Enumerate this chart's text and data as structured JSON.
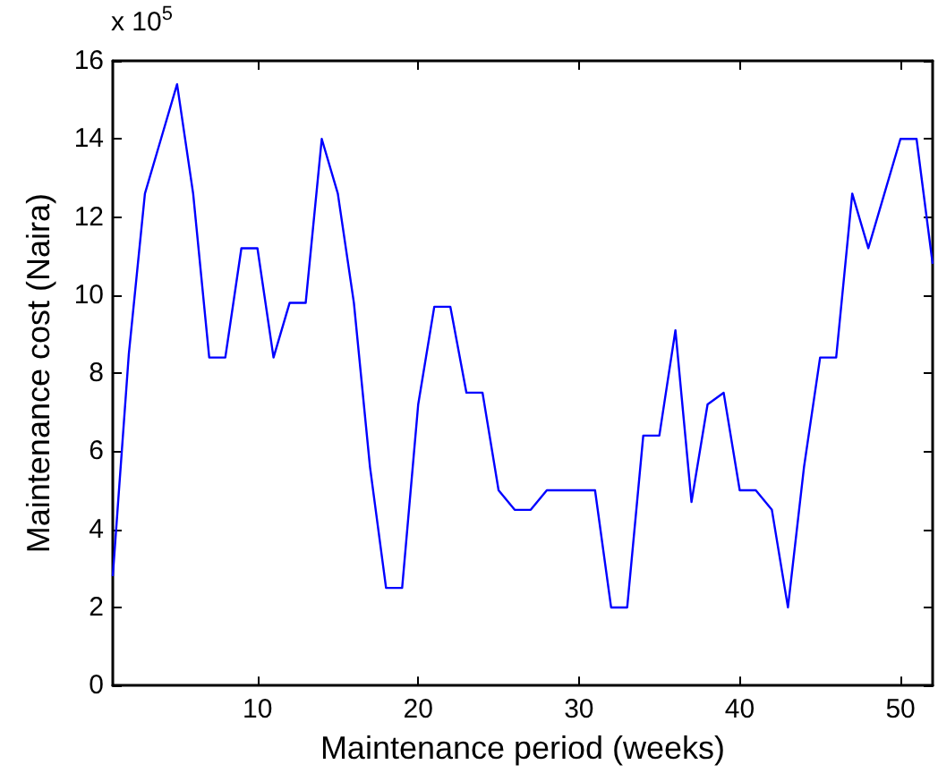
{
  "chart_data": {
    "type": "line",
    "xlabel": "Maintenance period (weeks)",
    "ylabel": "Maintenance cost (Naira)",
    "annotations": [
      "x 10$^{5}$"
    ],
    "x": [
      1,
      2,
      3,
      4,
      5,
      6,
      7,
      8,
      9,
      10,
      11,
      12,
      13,
      14,
      15,
      16,
      17,
      18,
      19,
      20,
      21,
      22,
      23,
      24,
      25,
      26,
      27,
      28,
      29,
      30,
      31,
      32,
      33,
      34,
      35,
      36,
      37,
      38,
      39,
      40,
      41,
      42,
      43,
      44,
      45,
      46,
      47,
      48,
      49,
      50,
      51,
      52
    ],
    "series": [
      {
        "color": "#0000ff",
        "values": [
          2.8,
          8.5,
          12.6,
          14.0,
          15.4,
          12.6,
          8.4,
          8.4,
          11.2,
          11.2,
          8.4,
          9.8,
          9.8,
          14.0,
          12.6,
          9.8,
          5.6,
          2.5,
          2.5,
          7.2,
          9.7,
          9.7,
          7.5,
          7.5,
          5.0,
          4.5,
          4.5,
          5.0,
          5.0,
          5.0,
          5.0,
          2.0,
          2.0,
          6.4,
          6.4,
          9.1,
          4.7,
          7.2,
          7.5,
          5.0,
          5.0,
          4.5,
          2.0,
          5.6,
          8.4,
          8.4,
          12.6,
          11.2,
          12.6,
          14.0,
          14.0,
          10.8
        ]
      }
    ],
    "xlim": [
      1,
      52
    ],
    "xticks": [
      10,
      20,
      30,
      40,
      50
    ],
    "ylim": [
      0,
      16
    ],
    "yticks": [
      0,
      2,
      4,
      6,
      8,
      10,
      12,
      14,
      16
    ],
    "grid": false,
    "marker": "none",
    "line_style": "solid"
  }
}
